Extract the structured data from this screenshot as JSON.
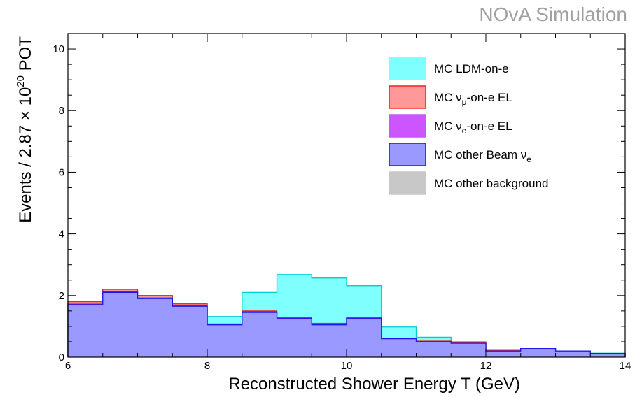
{
  "watermark": "NOvA Simulation",
  "chart_data": {
    "type": "bar",
    "stacked": true,
    "histogram": true,
    "xlabel": "Reconstructed Shower Energy T (GeV)",
    "ylabel": {
      "prefix": "Events / 2.87 × 10",
      "exponent": "20",
      "suffix": " POT"
    },
    "xlim": [
      6,
      14
    ],
    "ylim": [
      0,
      10.5
    ],
    "x_ticks": [
      "6",
      "8",
      "10",
      "12",
      "14"
    ],
    "y_ticks": [
      "0",
      "2",
      "4",
      "6",
      "8",
      "10"
    ],
    "bin_edges": [
      6,
      6.5,
      7,
      7.5,
      8,
      8.5,
      9,
      9.5,
      10,
      10.5,
      11,
      11.5,
      12,
      12.5,
      13,
      13.5,
      14
    ],
    "series": [
      {
        "name": "MC other Beam νe",
        "fill": "#9999ff",
        "stroke": "#1a1aee",
        "cumulative": [
          1.7,
          2.1,
          1.9,
          1.65,
          1.05,
          1.45,
          1.25,
          1.05,
          1.25,
          0.6,
          0.5,
          0.45,
          0.2,
          0.28,
          0.2,
          0.12
        ]
      },
      {
        "name": "MC νe-on-e EL",
        "fill": "#cc55ff",
        "stroke": "#9900cc",
        "cumulative": [
          1.72,
          2.12,
          1.92,
          1.67,
          1.06,
          1.47,
          1.27,
          1.07,
          1.27,
          0.6,
          0.5,
          0.45,
          0.2,
          0.28,
          0.2,
          0.12
        ]
      },
      {
        "name": "MC νμ-on-e EL",
        "fill": "#ff9999",
        "stroke": "#ee2222",
        "cumulative": [
          1.8,
          2.2,
          2.0,
          1.73,
          1.08,
          1.5,
          1.3,
          1.1,
          1.3,
          0.62,
          0.52,
          0.47,
          0.22,
          0.28,
          0.2,
          0.12
        ]
      },
      {
        "name": "MC LDM-on-e",
        "fill": "#80ffff",
        "stroke": "#00cccc",
        "cumulative": [
          1.8,
          2.2,
          2.0,
          1.75,
          1.32,
          2.1,
          2.68,
          2.57,
          2.32,
          0.98,
          0.65,
          0.5,
          0.22,
          0.28,
          0.2,
          0.13
        ]
      }
    ],
    "legend": {
      "placement": "top-right",
      "entries": [
        {
          "id": "ldm",
          "fill": "#80ffff",
          "stroke": "#80ffff",
          "main": "MC LDM-on-e",
          "pre": "MC ν",
          "sub": "",
          "post": ""
        },
        {
          "id": "numu",
          "fill": "#ff9999",
          "stroke": "#ee2222",
          "pre": "MC ν",
          "sub": "μ",
          "post": "-on-e EL"
        },
        {
          "id": "nue",
          "fill": "#cc55ff",
          "stroke": "#cc55ff",
          "pre": "MC ν",
          "sub": "e",
          "post": "-on-e EL"
        },
        {
          "id": "beam",
          "fill": "#9999ff",
          "stroke": "#1a1aee",
          "pre": "MC other Beam ν",
          "sub": "e",
          "post": ""
        },
        {
          "id": "other",
          "fill": "#c8c8c8",
          "stroke": "#c8c8c8",
          "main": "MC other background",
          "pre": "",
          "sub": "",
          "post": ""
        }
      ]
    }
  }
}
